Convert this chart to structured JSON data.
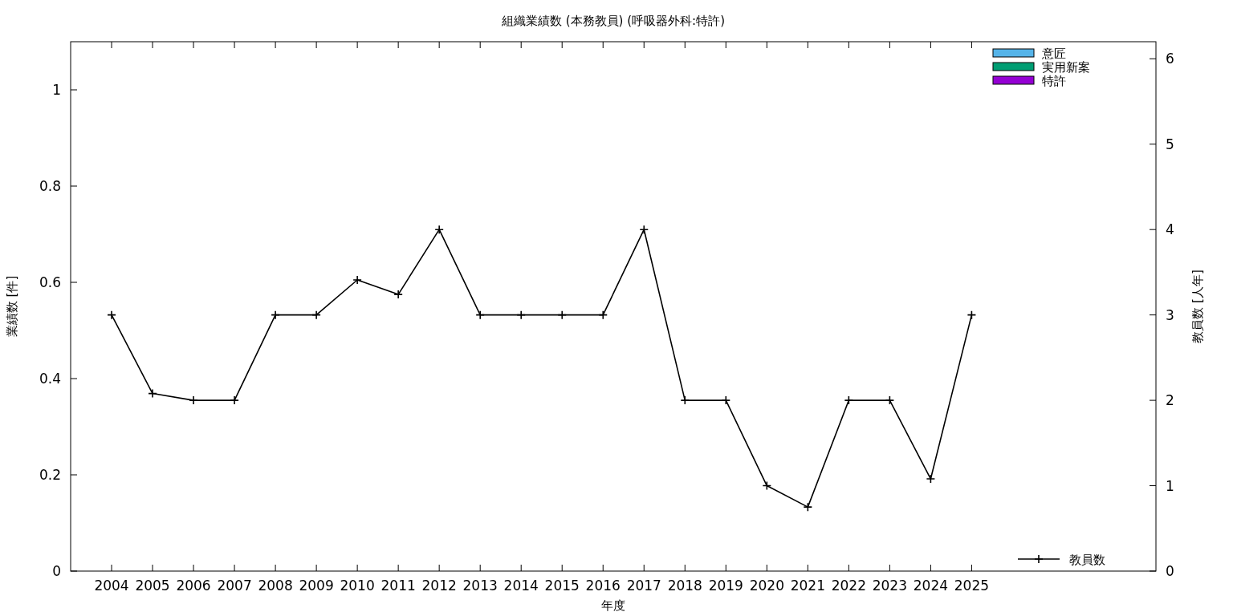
{
  "chart_data": {
    "type": "bar",
    "title": "組織業績数 (本務教員) (呼吸器外科:特許)",
    "xlabel": "年度",
    "ylabel": "業績数 [件]",
    "y2label": "教員数 [人年]",
    "x": [
      2004,
      2005,
      2006,
      2007,
      2008,
      2009,
      2010,
      2011,
      2012,
      2013,
      2014,
      2015,
      2016,
      2017,
      2018,
      2019,
      2020,
      2021,
      2022,
      2023,
      2024,
      2025
    ],
    "xlim": [
      2003,
      2029.5
    ],
    "xticks": [
      2004,
      2005,
      2006,
      2007,
      2008,
      2009,
      2010,
      2011,
      2012,
      2013,
      2014,
      2015,
      2016,
      2017,
      2018,
      2019,
      2020,
      2021,
      2022,
      2023,
      2024,
      2025
    ],
    "ylim": [
      0,
      1.1
    ],
    "yticks": [
      0,
      0.2,
      0.4,
      0.6,
      0.8,
      1
    ],
    "y2lim": [
      0,
      6.2
    ],
    "y2ticks": [
      0,
      1,
      2,
      3,
      4,
      5,
      6
    ],
    "legend": "right",
    "grid": false,
    "series": [
      {
        "name": "特許",
        "color": "#9400d3",
        "values": [
          0,
          0,
          0,
          0,
          0,
          0,
          0,
          0,
          0,
          0,
          0,
          0,
          0,
          0,
          0,
          0,
          0,
          0,
          0,
          0,
          0,
          0
        ]
      },
      {
        "name": "実用新案",
        "color": "#009e73",
        "values": [
          0,
          0,
          0,
          0,
          0,
          0,
          0,
          0,
          0,
          0,
          0,
          0,
          0,
          0,
          0,
          0,
          0,
          0,
          0,
          0,
          0,
          0
        ]
      },
      {
        "name": "意匠",
        "color": "#56b4e9",
        "values": [
          0,
          0,
          0,
          0,
          0,
          0,
          0,
          0,
          0,
          0,
          0,
          0,
          0,
          0,
          0,
          0,
          0,
          0,
          0,
          0,
          0,
          0
        ]
      },
      {
        "name": "教員数",
        "type": "line",
        "axis": "y2",
        "color": "#000000",
        "marker": "cross",
        "line_style": "solid",
        "values": [
          3,
          2.08,
          2,
          2,
          3,
          3,
          3.41,
          3.24,
          4,
          3,
          3,
          3,
          3,
          4,
          2,
          2,
          1,
          0.75,
          2,
          2,
          1.08,
          3
        ]
      }
    ]
  }
}
